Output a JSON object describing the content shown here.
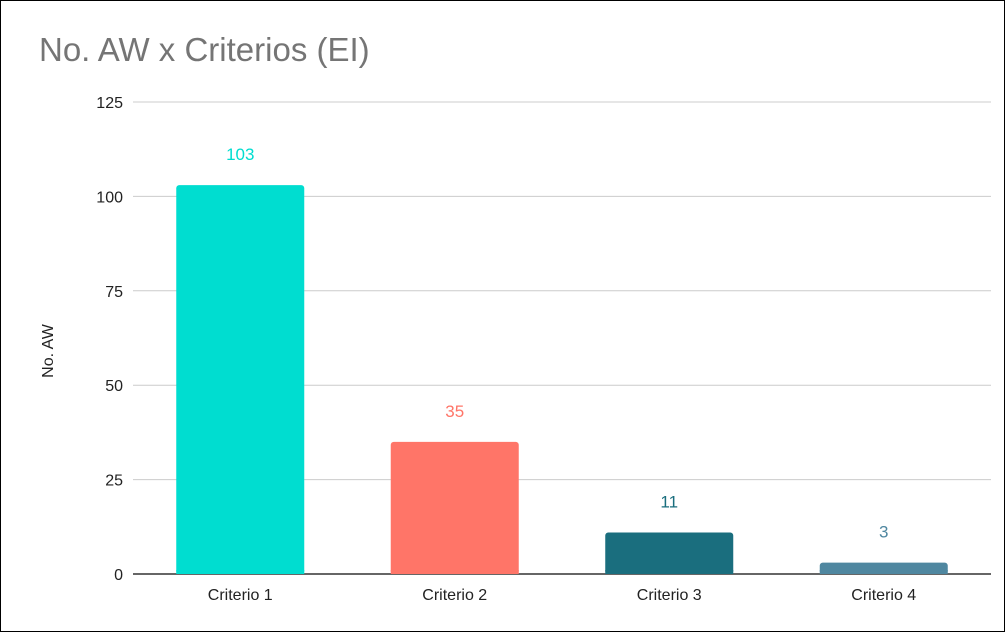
{
  "chart_data": {
    "type": "bar",
    "title": "No. AW x Criterios (EI)",
    "xlabel": "",
    "ylabel": "No. AW",
    "ylim": [
      0,
      125
    ],
    "yticks": [
      0,
      25,
      50,
      75,
      100,
      125
    ],
    "grid": true,
    "legend": "none",
    "categories": [
      "Criterio 1",
      "Criterio 2",
      "Criterio 3",
      "Criterio 4"
    ],
    "values": [
      103,
      35,
      11,
      3
    ],
    "data_labels": [
      "103",
      "35",
      "11",
      "3"
    ],
    "bar_colors": [
      "#00DDD0",
      "#FF7568",
      "#1A6E7E",
      "#4F87A0"
    ]
  }
}
